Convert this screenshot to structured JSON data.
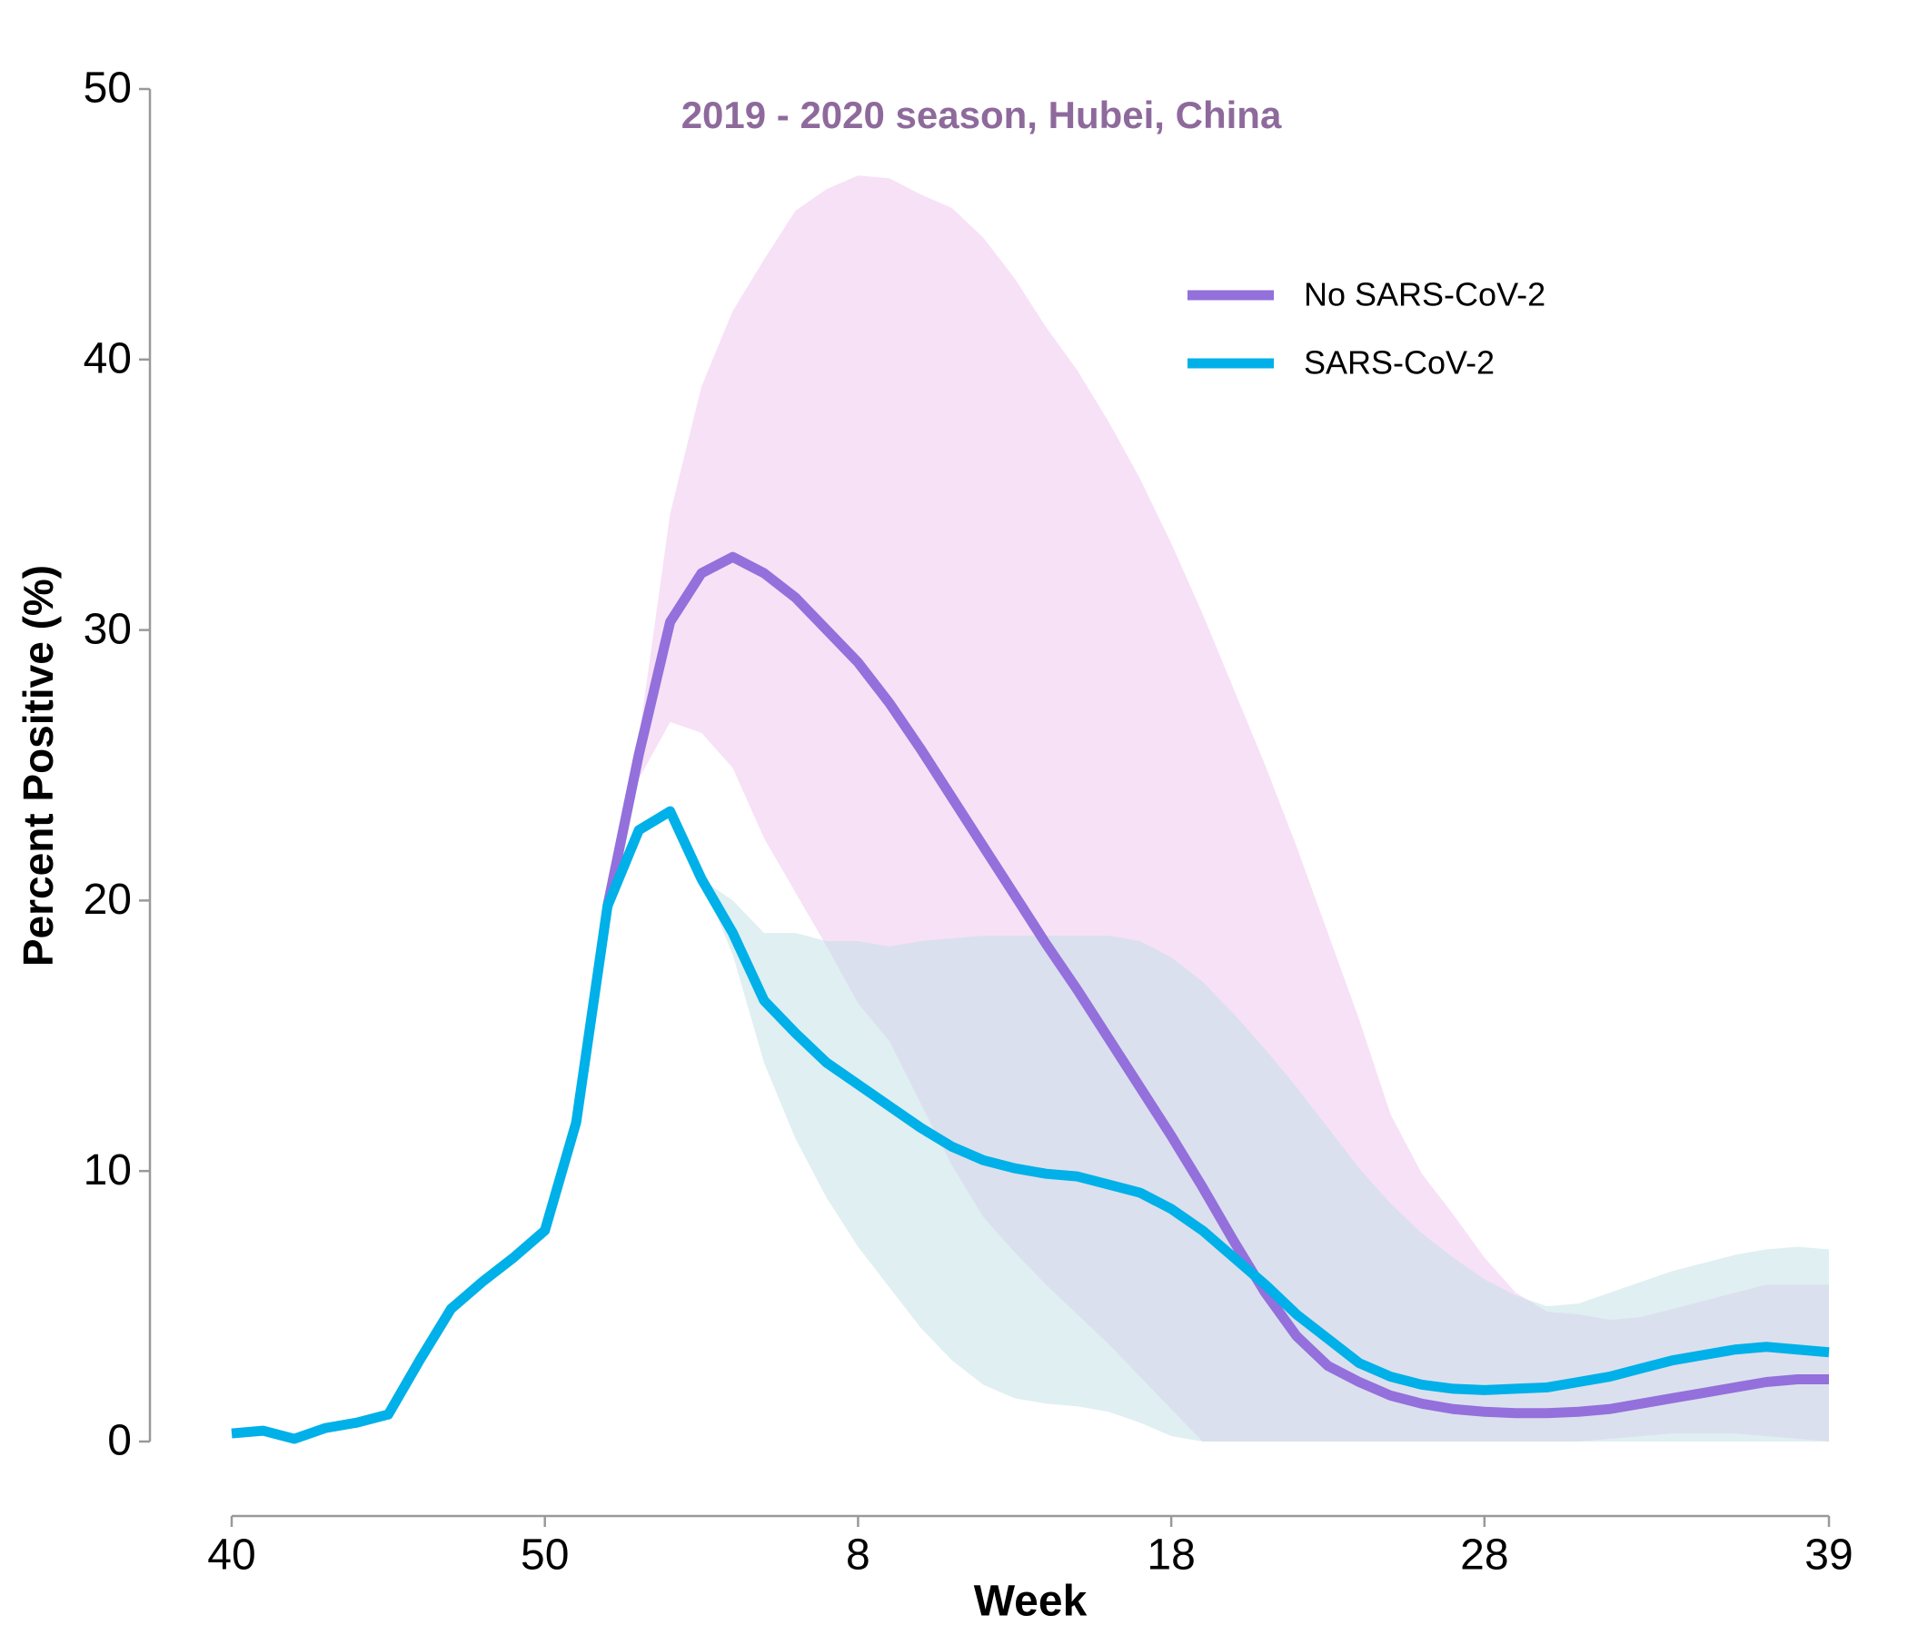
{
  "chart_data": {
    "type": "line",
    "title": "2019 - 2020 season, Hubei, China",
    "x_label": "Week",
    "y_label": "Percent Positive (%)",
    "x": [
      0,
      1,
      2,
      3,
      4,
      5,
      6,
      7,
      8,
      9,
      10,
      11,
      12,
      13,
      14,
      15,
      16,
      17,
      18,
      19,
      20,
      21,
      22,
      23,
      24,
      25,
      26,
      27,
      28,
      29,
      30,
      31,
      32,
      33,
      34,
      35,
      36,
      37,
      38,
      39,
      40,
      41,
      42,
      43,
      44,
      45,
      46,
      47,
      48,
      49,
      50,
      51
    ],
    "xlim": [
      0,
      51
    ],
    "xticks": [
      {
        "value": 0,
        "label": "40"
      },
      {
        "value": 10,
        "label": "50"
      },
      {
        "value": 20,
        "label": "8"
      },
      {
        "value": 30,
        "label": "18"
      },
      {
        "value": 40,
        "label": "28"
      },
      {
        "value": 51,
        "label": "39"
      }
    ],
    "ylim": [
      0,
      50
    ],
    "yticks": [
      0,
      10,
      20,
      30,
      40,
      50
    ],
    "legend": "upper right",
    "series": [
      {
        "name": "No SARS-CoV-2",
        "color": "#9370db",
        "band_color": "#f0c4ee",
        "values": [
          null,
          null,
          null,
          null,
          null,
          null,
          null,
          null,
          null,
          null,
          null,
          null,
          19.8,
          25.4,
          30.3,
          32.1,
          32.7,
          32.1,
          31.2,
          30.0,
          28.8,
          27.3,
          25.6,
          23.8,
          22.0,
          20.2,
          18.4,
          16.7,
          14.9,
          13.1,
          11.3,
          9.4,
          7.4,
          5.5,
          3.9,
          2.8,
          2.2,
          1.7,
          1.4,
          1.2,
          1.1,
          1.05,
          1.05,
          1.1,
          1.2,
          1.4,
          1.6,
          1.8,
          2.0,
          2.2,
          2.3,
          2.3
        ],
        "lower": [
          null,
          null,
          null,
          null,
          null,
          null,
          null,
          null,
          null,
          null,
          null,
          null,
          19.8,
          24.5,
          26.6,
          26.2,
          24.9,
          22.3,
          20.3,
          18.3,
          16.2,
          14.8,
          12.5,
          10.2,
          8.3,
          7.0,
          5.8,
          4.7,
          3.6,
          2.4,
          1.2,
          0,
          0,
          0,
          0,
          0,
          0,
          0,
          0,
          0,
          0,
          0,
          0,
          0,
          0.1,
          0.2,
          0.3,
          0.3,
          0.3,
          0.2,
          0.1,
          0
        ],
        "upper": [
          null,
          null,
          null,
          null,
          null,
          null,
          null,
          null,
          null,
          null,
          null,
          null,
          19.8,
          26.0,
          34.3,
          39.0,
          41.8,
          43.7,
          45.5,
          46.3,
          46.8,
          46.7,
          46.1,
          45.6,
          44.5,
          43.0,
          41.2,
          39.6,
          37.7,
          35.6,
          33.2,
          30.6,
          27.8,
          25.0,
          22.0,
          18.8,
          15.6,
          12.1,
          9.9,
          8.4,
          6.8,
          5.5,
          4.8,
          4.7,
          4.5,
          4.6,
          4.9,
          5.2,
          5.5,
          5.8,
          5.8,
          5.8
        ]
      },
      {
        "name": "SARS-CoV-2",
        "color": "#00b0e8",
        "band_color": "#bfe0e6",
        "values": [
          0.3,
          0.4,
          0.1,
          0.5,
          0.7,
          1.0,
          3.0,
          4.9,
          5.9,
          6.8,
          7.8,
          11.8,
          19.8,
          22.6,
          23.3,
          20.8,
          18.8,
          16.3,
          15.1,
          14.0,
          13.2,
          12.4,
          11.6,
          10.9,
          10.4,
          10.1,
          9.9,
          9.8,
          9.5,
          9.2,
          8.6,
          7.8,
          6.8,
          5.8,
          4.7,
          3.8,
          2.9,
          2.4,
          2.1,
          1.95,
          1.9,
          1.95,
          2.0,
          2.2,
          2.4,
          2.7,
          3.0,
          3.2,
          3.4,
          3.5,
          3.4,
          3.3
        ],
        "lower": [
          null,
          null,
          null,
          null,
          null,
          null,
          null,
          null,
          null,
          null,
          null,
          null,
          19.8,
          22.5,
          23.3,
          20.8,
          18.0,
          14.0,
          11.2,
          9.0,
          7.2,
          5.7,
          4.2,
          3.0,
          2.1,
          1.6,
          1.4,
          1.3,
          1.1,
          0.7,
          0.2,
          0,
          0,
          0,
          0,
          0,
          0,
          0,
          0,
          0,
          0,
          0,
          0,
          0,
          0,
          0,
          0,
          0,
          0,
          0,
          0,
          0
        ],
        "upper": [
          null,
          null,
          null,
          null,
          null,
          null,
          null,
          null,
          null,
          null,
          null,
          null,
          19.8,
          22.5,
          23.3,
          20.8,
          20.0,
          18.8,
          18.8,
          18.5,
          18.5,
          18.3,
          18.5,
          18.6,
          18.7,
          18.7,
          18.7,
          18.7,
          18.7,
          18.5,
          17.9,
          17.0,
          15.8,
          14.5,
          13.1,
          11.6,
          10.1,
          8.8,
          7.7,
          6.8,
          6.0,
          5.4,
          5.0,
          5.1,
          5.5,
          5.9,
          6.3,
          6.6,
          6.9,
          7.1,
          7.2,
          7.1
        ]
      }
    ]
  }
}
